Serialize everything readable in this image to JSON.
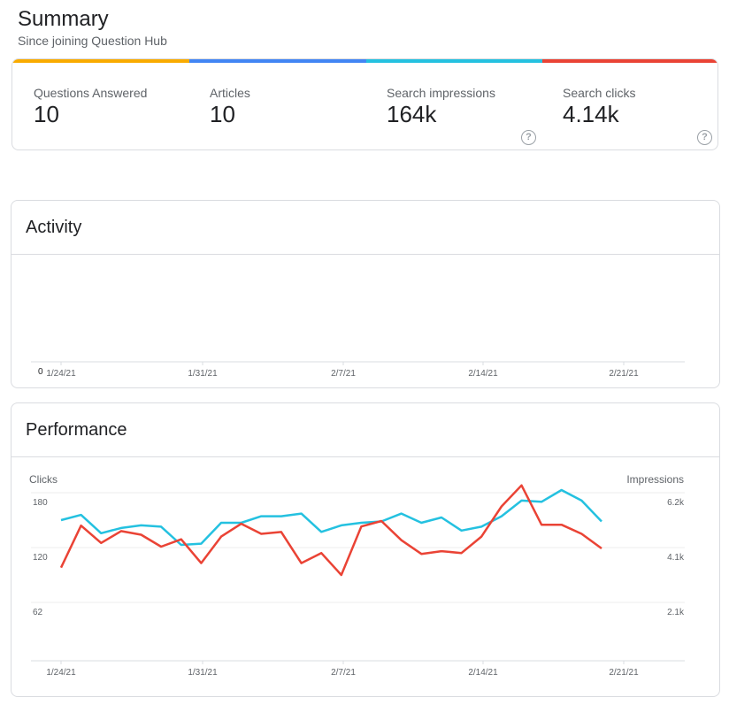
{
  "summary": {
    "title": "Summary",
    "subtitle": "Since joining Question Hub"
  },
  "stats": [
    {
      "label": "Questions Answered",
      "value": "10",
      "color": "#f9ab00",
      "help": false
    },
    {
      "label": "Articles",
      "value": "10",
      "color": "#4285f4",
      "help": false
    },
    {
      "label": "Search impressions",
      "value": "164k",
      "color": "#24c1e0",
      "help": true
    },
    {
      "label": "Search clicks",
      "value": "4.14k",
      "color": "#ea4335",
      "help": true
    }
  ],
  "help_icon": {
    "glyph": "?"
  },
  "activity": {
    "title": "Activity",
    "chart_data": {
      "type": "line",
      "title": "",
      "xlabel": "",
      "ylabel": "",
      "y_tick_labels": [
        "0"
      ],
      "x_tick_labels": [
        "1/24/21",
        "1/31/21",
        "2/7/21",
        "2/14/21",
        "2/21/21"
      ],
      "series": []
    }
  },
  "performance": {
    "title": "Performance",
    "chart_data": {
      "type": "line",
      "left_axis_label": "Clicks",
      "right_axis_label": "Impressions",
      "left_ticks": [
        "180",
        "120",
        "62"
      ],
      "right_ticks": [
        "6.2k",
        "4.1k",
        "2.1k"
      ],
      "left_tick_values": [
        180,
        120,
        62
      ],
      "right_tick_values": [
        6200,
        4100,
        2100
      ],
      "x_tick_labels": [
        "1/24/21",
        "1/31/21",
        "2/7/21",
        "2/14/21",
        "2/21/21"
      ],
      "series": [
        {
          "color": "#24c1e0",
          "axis": "right",
          "values": [
            5150,
            5350,
            4650,
            4850,
            4950,
            4900,
            4200,
            4250,
            5050,
            5050,
            5300,
            5300,
            5400,
            4700,
            4950,
            5050,
            5100,
            5400,
            5050,
            5250,
            4750,
            4900,
            5300,
            5900,
            5850,
            6300,
            5900,
            5100
          ]
        },
        {
          "color": "#ea4335",
          "axis": "left",
          "values": [
            98,
            144,
            125,
            138,
            134,
            121,
            129,
            103,
            132,
            146,
            135,
            137,
            103,
            114,
            90,
            143,
            149,
            128,
            113,
            116,
            114,
            132,
            165,
            188,
            145,
            145,
            135,
            119
          ]
        }
      ]
    }
  }
}
